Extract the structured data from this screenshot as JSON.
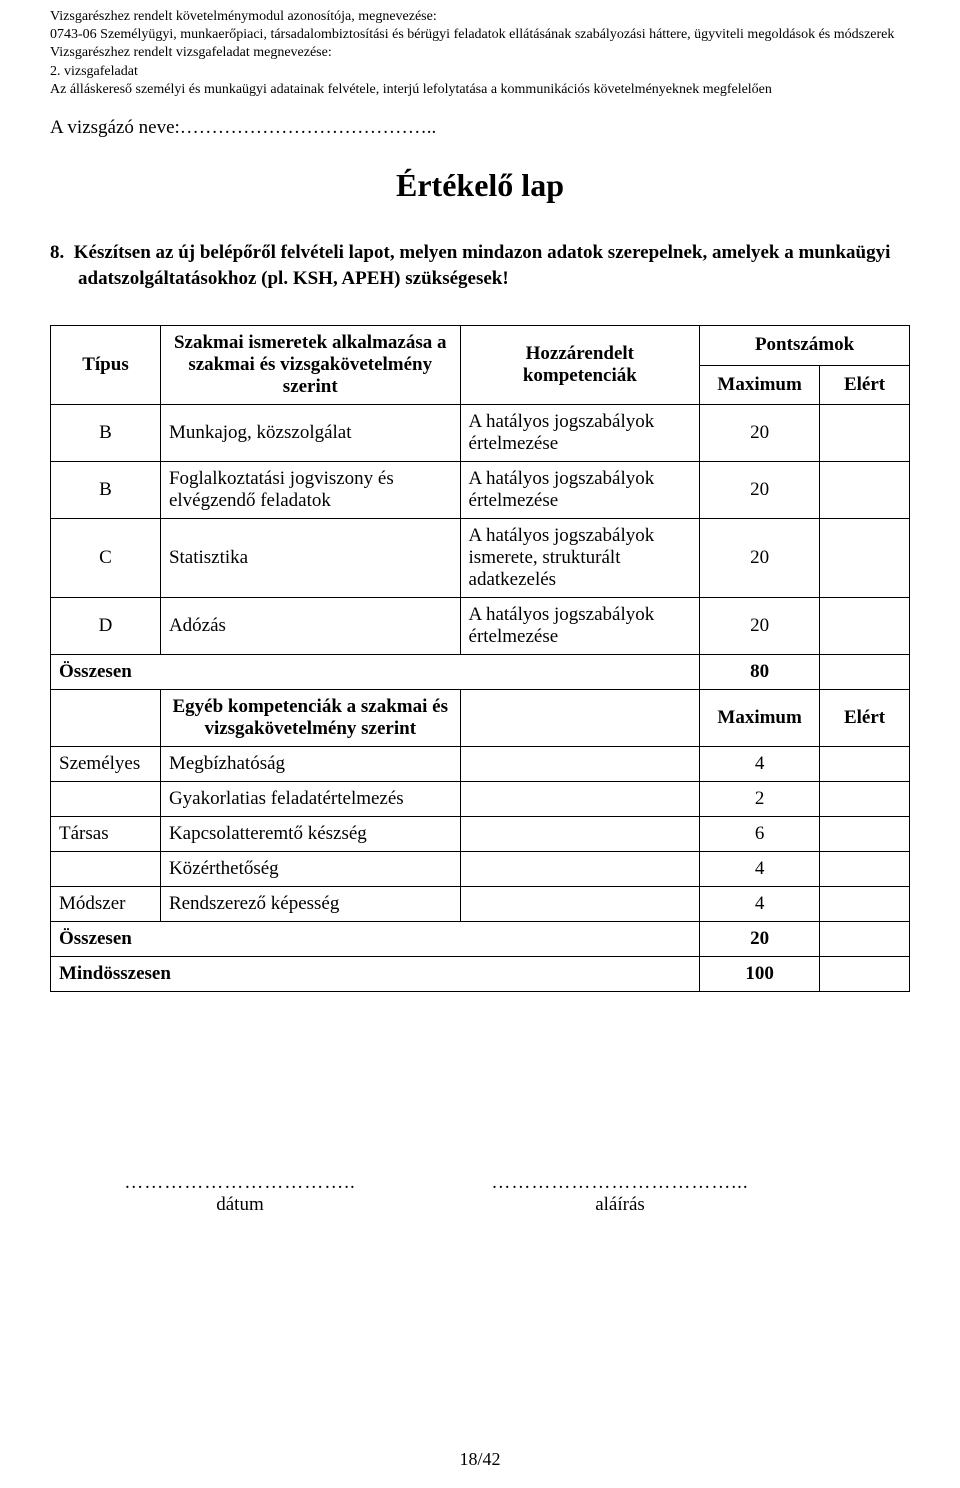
{
  "header": {
    "line1": "Vizsgarészhez rendelt követelménymodul azonosítója, megnevezése:",
    "line2": "0743-06 Személyügyi, munkaerőpiaci, társadalombiztosítási és bérügyi feladatok ellátásának szabályozási háttere, ügyviteli megoldások és módszerek",
    "line3": "Vizsgarészhez rendelt vizsgafeladat megnevezése:",
    "line4": "2. vizsgafeladat",
    "line5": "Az álláskereső személyi és munkaügyi adatainak felvétele, interjú lefolytatása a kommunikációs követelményeknek megfelelően"
  },
  "candidate_label": "A vizsgázó neve:…………………………………..",
  "title": "Értékelő lap",
  "instruction_num": "8.",
  "instruction_text": "Készítsen az új belépőről felvételi lapot, melyen mindazon adatok szerepelnek, amelyek a munkaügyi adatszolgáltatásokhoz (pl. KSH, APEH) szükségesek!",
  "table": {
    "hdr_type": "Típus",
    "hdr_skill": "Szakmai ismeretek alkalmazása a szakmai és vizsgakövetelmény szerint",
    "hdr_comp": "Hozzárendelt kompetenciák",
    "hdr_scores": "Pontszámok",
    "hdr_max": "Maximum",
    "hdr_ach": "Elért",
    "rows_main": [
      {
        "type": "B",
        "skill": "Munkajog, közszolgálat",
        "comp": "A hatályos jogszabályok értelmezése",
        "max": "20"
      },
      {
        "type": "B",
        "skill": "Foglalkoztatási jogviszony és elvégzendő feladatok",
        "comp": "A hatályos jogszabályok értelmezése",
        "max": "20"
      },
      {
        "type": "C",
        "skill": "Statisztika",
        "comp": "A hatályos jogszabályok ismerete, strukturált adatkezelés",
        "max": "20"
      },
      {
        "type": "D",
        "skill": "Adózás",
        "comp": "A hatályos jogszabályok értelmezése",
        "max": "20"
      }
    ],
    "sum1_label": "Összesen",
    "sum1_val": "80",
    "hdr_other": "Egyéb kompetenciák a szakmai és vizsgakövetelmény szerint",
    "rows_other": [
      {
        "type": "Személyes",
        "skill": "Megbízhatóság",
        "max": "4"
      },
      {
        "type": "",
        "skill": "Gyakorlatias feladatértelmezés",
        "max": "2"
      },
      {
        "type": "Társas",
        "skill": "Kapcsolatteremtő készség",
        "max": "6"
      },
      {
        "type": "",
        "skill": "Közérthetőség",
        "max": "4"
      },
      {
        "type": "Módszer",
        "skill": "Rendszerező képesség",
        "max": "4"
      }
    ],
    "sum2_label": "Összesen",
    "sum2_val": "20",
    "grand_label": "Mindösszesen",
    "grand_val": "100"
  },
  "sig": {
    "dots_left": "……………………………..",
    "date_label": "dátum",
    "dots_right": "………………………………...",
    "sign_label": "aláírás"
  },
  "page_num": "18/42",
  "colors": {
    "text": "#000000",
    "bg": "#ffffff",
    "border": "#000000"
  }
}
